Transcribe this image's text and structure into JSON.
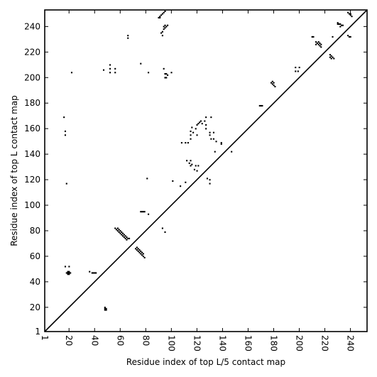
{
  "chart_data": {
    "type": "scatter",
    "xlabel": "Residue index of top L/5 contact map",
    "ylabel": "Residue index of top L contact map",
    "xlim": [
      1,
      253
    ],
    "ylim": [
      1,
      253
    ],
    "xticks": [
      1,
      20,
      40,
      60,
      80,
      100,
      120,
      140,
      160,
      180,
      200,
      220,
      240
    ],
    "yticks": [
      1,
      20,
      40,
      60,
      80,
      100,
      120,
      140,
      160,
      180,
      200,
      220,
      240
    ],
    "xtick_rotation": -90,
    "grid": false,
    "diagonal": {
      "from": [
        1,
        1
      ],
      "to": [
        253,
        253
      ],
      "color": "#000000"
    },
    "marker_color": "#000000",
    "series": [
      {
        "values": [
          [
            48,
            18
          ],
          [
            48,
            19
          ],
          [
            48,
            20
          ],
          [
            49,
            18
          ],
          [
            49,
            19
          ],
          [
            18,
            47
          ],
          [
            19,
            46
          ],
          [
            19,
            47
          ],
          [
            19,
            48
          ],
          [
            20,
            46
          ],
          [
            20,
            47
          ],
          [
            20,
            48
          ],
          [
            21,
            47
          ],
          [
            38,
            47
          ],
          [
            39,
            47
          ],
          [
            40,
            47
          ],
          [
            41,
            47
          ],
          [
            36,
            48
          ],
          [
            17,
            52
          ],
          [
            20,
            52
          ],
          [
            17,
            155
          ],
          [
            17,
            158
          ],
          [
            16,
            169
          ],
          [
            18,
            117
          ],
          [
            22,
            204
          ],
          [
            56,
            82
          ],
          [
            57,
            81
          ],
          [
            58,
            80
          ],
          [
            58,
            82
          ],
          [
            59,
            79
          ],
          [
            59,
            81
          ],
          [
            60,
            78
          ],
          [
            60,
            80
          ],
          [
            61,
            77
          ],
          [
            61,
            79
          ],
          [
            62,
            76
          ],
          [
            62,
            78
          ],
          [
            63,
            75
          ],
          [
            63,
            77
          ],
          [
            64,
            74
          ],
          [
            64,
            76
          ],
          [
            65,
            73
          ],
          [
            65,
            75
          ],
          [
            66,
            74
          ],
          [
            67,
            74
          ],
          [
            72,
            66
          ],
          [
            73,
            65
          ],
          [
            73,
            67
          ],
          [
            74,
            64
          ],
          [
            74,
            66
          ],
          [
            75,
            63
          ],
          [
            75,
            65
          ],
          [
            76,
            62
          ],
          [
            76,
            64
          ],
          [
            77,
            61
          ],
          [
            77,
            63
          ],
          [
            78,
            60
          ],
          [
            78,
            62
          ],
          [
            79,
            59
          ],
          [
            76,
            95
          ],
          [
            77,
            95
          ],
          [
            78,
            95
          ],
          [
            79,
            95
          ],
          [
            82,
            93
          ],
          [
            93,
            82
          ],
          [
            95,
            79
          ],
          [
            81,
            121
          ],
          [
            47,
            206
          ],
          [
            52,
            204
          ],
          [
            52,
            207
          ],
          [
            52,
            210
          ],
          [
            56,
            204
          ],
          [
            56,
            207
          ],
          [
            76,
            211
          ],
          [
            82,
            204
          ],
          [
            95,
            200
          ],
          [
            95,
            203
          ],
          [
            96,
            200
          ],
          [
            96,
            203
          ],
          [
            97,
            202
          ],
          [
            94,
            207
          ],
          [
            100,
            204
          ],
          [
            66,
            231
          ],
          [
            66,
            233
          ],
          [
            90,
            247
          ],
          [
            91,
            247
          ],
          [
            91,
            248
          ],
          [
            92,
            249
          ],
          [
            93,
            250
          ],
          [
            94,
            251
          ],
          [
            95,
            252
          ],
          [
            92,
            235
          ],
          [
            93,
            236
          ],
          [
            93,
            233
          ],
          [
            94,
            238
          ],
          [
            94,
            240
          ],
          [
            95,
            239
          ],
          [
            95,
            241
          ],
          [
            96,
            240
          ],
          [
            97,
            241
          ],
          [
            101,
            119
          ],
          [
            107,
            115
          ],
          [
            111,
            118
          ],
          [
            108,
            149
          ],
          [
            111,
            149
          ],
          [
            113,
            149
          ],
          [
            112,
            135
          ],
          [
            114,
            133
          ],
          [
            115,
            135
          ],
          [
            115,
            131
          ],
          [
            116,
            132
          ],
          [
            118,
            128
          ],
          [
            119,
            131
          ],
          [
            120,
            127
          ],
          [
            121,
            131
          ],
          [
            115,
            152
          ],
          [
            115,
            155
          ],
          [
            115,
            158
          ],
          [
            116,
            161
          ],
          [
            117,
            157
          ],
          [
            119,
            160
          ],
          [
            120,
            155
          ],
          [
            120,
            163
          ],
          [
            121,
            164
          ],
          [
            122,
            165
          ],
          [
            123,
            166
          ],
          [
            124,
            164
          ],
          [
            126,
            166
          ],
          [
            127,
            160
          ],
          [
            127,
            163
          ],
          [
            127,
            169
          ],
          [
            131,
            169
          ],
          [
            130,
            157
          ],
          [
            130,
            155
          ],
          [
            131,
            152
          ],
          [
            133,
            152
          ],
          [
            133,
            157
          ],
          [
            134,
            142
          ],
          [
            135,
            150
          ],
          [
            139,
            148
          ],
          [
            139,
            149
          ],
          [
            147,
            142
          ],
          [
            128,
            121
          ],
          [
            130,
            117
          ],
          [
            130,
            120
          ],
          [
            169,
            178
          ],
          [
            170,
            178
          ],
          [
            171,
            178
          ],
          [
            178,
            196
          ],
          [
            179,
            195
          ],
          [
            179,
            197
          ],
          [
            180,
            194
          ],
          [
            180,
            196
          ],
          [
            181,
            193
          ],
          [
            197,
            205
          ],
          [
            197,
            208
          ],
          [
            199,
            205
          ],
          [
            200,
            208
          ],
          [
            210,
            232
          ],
          [
            211,
            232
          ],
          [
            213,
            226
          ],
          [
            213,
            228
          ],
          [
            214,
            227
          ],
          [
            215,
            226
          ],
          [
            215,
            228
          ],
          [
            216,
            225
          ],
          [
            216,
            227
          ],
          [
            217,
            224
          ],
          [
            217,
            226
          ],
          [
            224,
            216
          ],
          [
            224,
            218
          ],
          [
            225,
            215
          ],
          [
            225,
            217
          ],
          [
            226,
            216
          ],
          [
            227,
            215
          ],
          [
            226,
            232
          ],
          [
            230,
            242
          ],
          [
            230,
            243
          ],
          [
            231,
            242
          ],
          [
            232,
            240
          ],
          [
            232,
            242
          ],
          [
            233,
            241
          ],
          [
            234,
            241
          ],
          [
            238,
            233
          ],
          [
            239,
            232
          ],
          [
            240,
            232
          ],
          [
            238,
            251
          ],
          [
            239,
            250
          ],
          [
            240,
            250
          ],
          [
            240,
            249
          ],
          [
            241,
            248
          ]
        ]
      }
    ]
  }
}
